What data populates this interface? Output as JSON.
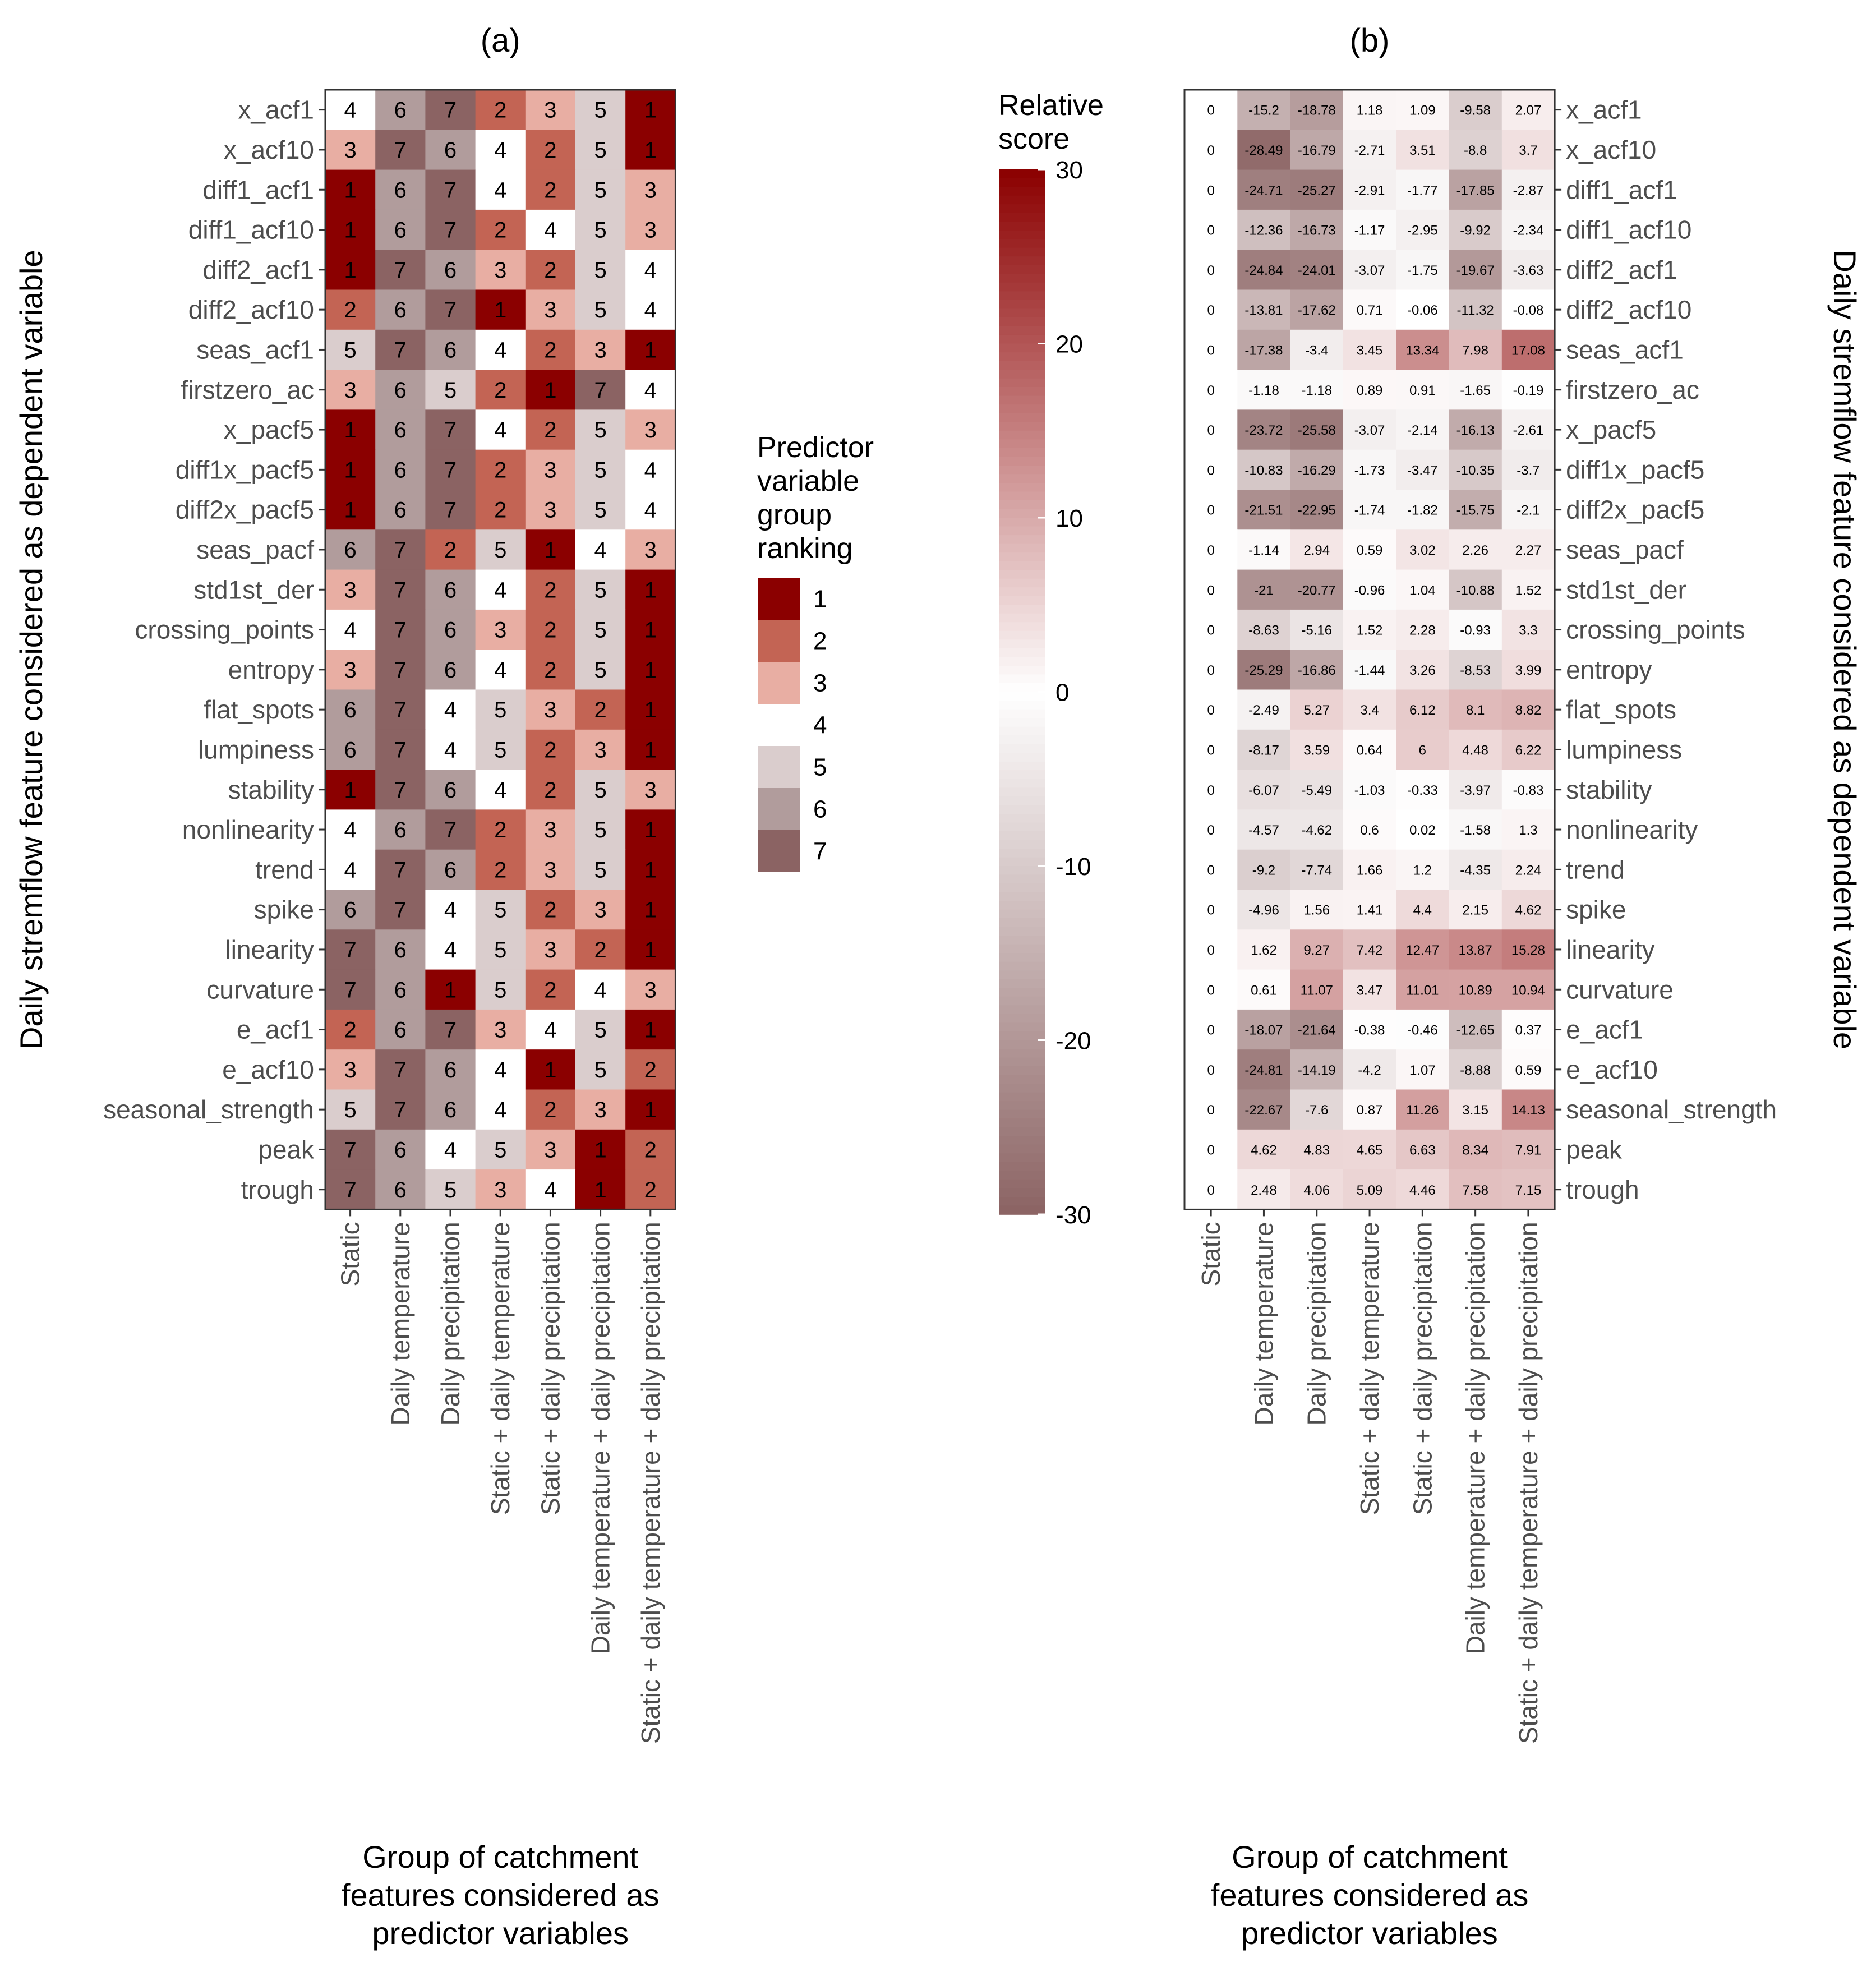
{
  "chart_data": [
    {
      "panel": "(a)",
      "type": "heatmap",
      "title": "(a)",
      "xlabel": "Group of catchment features considered as predictor variables",
      "ylabel": "Daily stremflow feature considered as dependent variable",
      "legend": {
        "title": "Predictor variable group ranking",
        "position": "right",
        "levels": [
          "1",
          "2",
          "3",
          "4",
          "5",
          "6",
          "7"
        ],
        "colors": [
          "#8b0000",
          "#c36454",
          "#e8aea3",
          "#ffffff",
          "#dacdcd",
          "#b19c9c",
          "#8b6363"
        ]
      },
      "columns": [
        "Static",
        "Daily temperature",
        "Daily precipitation",
        "Static + daily temperature",
        "Static + daily precipitation",
        "Daily temperature + daily precipitation",
        "Static + daily temperature + daily precipitation"
      ],
      "rows": [
        "x_acf1",
        "x_acf10",
        "diff1_acf1",
        "diff1_acf10",
        "diff2_acf1",
        "diff2_acf10",
        "seas_acf1",
        "firstzero_ac",
        "x_pacf5",
        "diff1x_pacf5",
        "diff2x_pacf5",
        "seas_pacf",
        "std1st_der",
        "crossing_points",
        "entropy",
        "flat_spots",
        "lumpiness",
        "stability",
        "nonlinearity",
        "trend",
        "spike",
        "linearity",
        "curvature",
        "e_acf1",
        "e_acf10",
        "seasonal_strength",
        "peak",
        "trough"
      ],
      "values": [
        [
          4,
          6,
          7,
          2,
          3,
          5,
          1
        ],
        [
          3,
          7,
          6,
          4,
          2,
          5,
          1
        ],
        [
          1,
          6,
          7,
          4,
          2,
          5,
          3
        ],
        [
          1,
          6,
          7,
          2,
          4,
          5,
          3
        ],
        [
          1,
          7,
          6,
          3,
          2,
          5,
          4
        ],
        [
          2,
          6,
          7,
          1,
          3,
          5,
          4
        ],
        [
          5,
          7,
          6,
          4,
          2,
          3,
          1
        ],
        [
          3,
          6,
          5,
          2,
          1,
          7,
          4
        ],
        [
          1,
          6,
          7,
          4,
          2,
          5,
          3
        ],
        [
          1,
          6,
          7,
          2,
          3,
          5,
          4
        ],
        [
          1,
          6,
          7,
          2,
          3,
          5,
          4
        ],
        [
          6,
          7,
          2,
          5,
          1,
          4,
          3
        ],
        [
          3,
          7,
          6,
          4,
          2,
          5,
          1
        ],
        [
          4,
          7,
          6,
          3,
          2,
          5,
          1
        ],
        [
          3,
          7,
          6,
          4,
          2,
          5,
          1
        ],
        [
          6,
          7,
          4,
          5,
          3,
          2,
          1
        ],
        [
          6,
          7,
          4,
          5,
          2,
          3,
          1
        ],
        [
          1,
          7,
          6,
          4,
          2,
          5,
          3
        ],
        [
          4,
          6,
          7,
          2,
          3,
          5,
          1
        ],
        [
          4,
          7,
          6,
          2,
          3,
          5,
          1
        ],
        [
          6,
          7,
          4,
          5,
          2,
          3,
          1
        ],
        [
          7,
          6,
          4,
          5,
          3,
          2,
          1
        ],
        [
          7,
          6,
          1,
          5,
          2,
          4,
          3
        ],
        [
          2,
          6,
          7,
          3,
          4,
          5,
          1
        ],
        [
          3,
          7,
          6,
          4,
          1,
          5,
          2
        ],
        [
          5,
          7,
          6,
          4,
          2,
          3,
          1
        ],
        [
          7,
          6,
          4,
          5,
          3,
          1,
          2
        ],
        [
          7,
          6,
          5,
          3,
          4,
          1,
          2
        ]
      ]
    },
    {
      "panel": "(b)",
      "type": "heatmap",
      "title": "(b)",
      "xlabel": "Group of catchment features considered as predictor variables",
      "ylabel": "Daily stremflow feature considered as dependent variable",
      "legend": {
        "title": "Relative score",
        "position": "left",
        "range": [
          -30,
          30
        ],
        "ticks": [
          "30",
          "20",
          "10",
          "0",
          "-10",
          "-20",
          "-30"
        ],
        "colors": {
          "low": "#8b6363",
          "mid": "#ffffff",
          "high": "#8b0000"
        }
      },
      "columns": [
        "Static",
        "Daily temperature",
        "Daily precipitation",
        "Static + daily temperature",
        "Static + daily precipitation",
        "Daily temperature + daily precipitation",
        "Static + daily temperature + daily precipitation"
      ],
      "rows": [
        "x_acf1",
        "x_acf10",
        "diff1_acf1",
        "diff1_acf10",
        "diff2_acf1",
        "diff2_acf10",
        "seas_acf1",
        "firstzero_ac",
        "x_pacf5",
        "diff1x_pacf5",
        "diff2x_pacf5",
        "seas_pacf",
        "std1st_der",
        "crossing_points",
        "entropy",
        "flat_spots",
        "lumpiness",
        "stability",
        "nonlinearity",
        "trend",
        "spike",
        "linearity",
        "curvature",
        "e_acf1",
        "e_acf10",
        "seasonal_strength",
        "peak",
        "trough"
      ],
      "values": [
        [
          "0",
          "-15.2",
          "-18.78",
          "1.18",
          "1.09",
          "-9.58",
          "2.07"
        ],
        [
          "0",
          "-28.49",
          "-16.79",
          "-2.71",
          "3.51",
          "-8.8",
          "3.7"
        ],
        [
          "0",
          "-24.71",
          "-25.27",
          "-2.91",
          "-1.77",
          "-17.85",
          "-2.87"
        ],
        [
          "0",
          "-12.36",
          "-16.73",
          "-1.17",
          "-2.95",
          "-9.92",
          "-2.34"
        ],
        [
          "0",
          "-24.84",
          "-24.01",
          "-3.07",
          "-1.75",
          "-19.67",
          "-3.63"
        ],
        [
          "0",
          "-13.81",
          "-17.62",
          "0.71",
          "-0.06",
          "-11.32",
          "-0.08"
        ],
        [
          "0",
          "-17.38",
          "-3.4",
          "3.45",
          "13.34",
          "7.98",
          "17.08"
        ],
        [
          "0",
          "-1.18",
          "-1.18",
          "0.89",
          "0.91",
          "-1.65",
          "-0.19"
        ],
        [
          "0",
          "-23.72",
          "-25.58",
          "-3.07",
          "-2.14",
          "-16.13",
          "-2.61"
        ],
        [
          "0",
          "-10.83",
          "-16.29",
          "-1.73",
          "-3.47",
          "-10.35",
          "-3.7"
        ],
        [
          "0",
          "-21.51",
          "-22.95",
          "-1.74",
          "-1.82",
          "-15.75",
          "-2.1"
        ],
        [
          "0",
          "-1.14",
          "2.94",
          "0.59",
          "3.02",
          "2.26",
          "2.27"
        ],
        [
          "0",
          "-21",
          "-20.77",
          "-0.96",
          "1.04",
          "-10.88",
          "1.52"
        ],
        [
          "0",
          "-8.63",
          "-5.16",
          "1.52",
          "2.28",
          "-0.93",
          "3.3"
        ],
        [
          "0",
          "-25.29",
          "-16.86",
          "-1.44",
          "3.26",
          "-8.53",
          "3.99"
        ],
        [
          "0",
          "-2.49",
          "5.27",
          "3.4",
          "6.12",
          "8.1",
          "8.82"
        ],
        [
          "0",
          "-8.17",
          "3.59",
          "0.64",
          "6",
          "4.48",
          "6.22"
        ],
        [
          "0",
          "-6.07",
          "-5.49",
          "-1.03",
          "-0.33",
          "-3.97",
          "-0.83"
        ],
        [
          "0",
          "-4.57",
          "-4.62",
          "0.6",
          "0.02",
          "-1.58",
          "1.3"
        ],
        [
          "0",
          "-9.2",
          "-7.74",
          "1.66",
          "1.2",
          "-4.35",
          "2.24"
        ],
        [
          "0",
          "-4.96",
          "1.56",
          "1.41",
          "4.4",
          "2.15",
          "4.62"
        ],
        [
          "0",
          "1.62",
          "9.27",
          "7.42",
          "12.47",
          "13.87",
          "15.28"
        ],
        [
          "0",
          "0.61",
          "11.07",
          "3.47",
          "11.01",
          "10.89",
          "10.94"
        ],
        [
          "0",
          "-18.07",
          "-21.64",
          "-0.38",
          "-0.46",
          "-12.65",
          "0.37"
        ],
        [
          "0",
          "-24.81",
          "-14.19",
          "-4.2",
          "1.07",
          "-8.88",
          "0.59"
        ],
        [
          "0",
          "-22.67",
          "-7.6",
          "0.87",
          "11.26",
          "3.15",
          "14.13"
        ],
        [
          "0",
          "4.62",
          "4.83",
          "4.65",
          "6.63",
          "8.34",
          "7.91"
        ],
        [
          "0",
          "2.48",
          "4.06",
          "5.09",
          "4.46",
          "7.58",
          "7.15"
        ]
      ]
    }
  ]
}
